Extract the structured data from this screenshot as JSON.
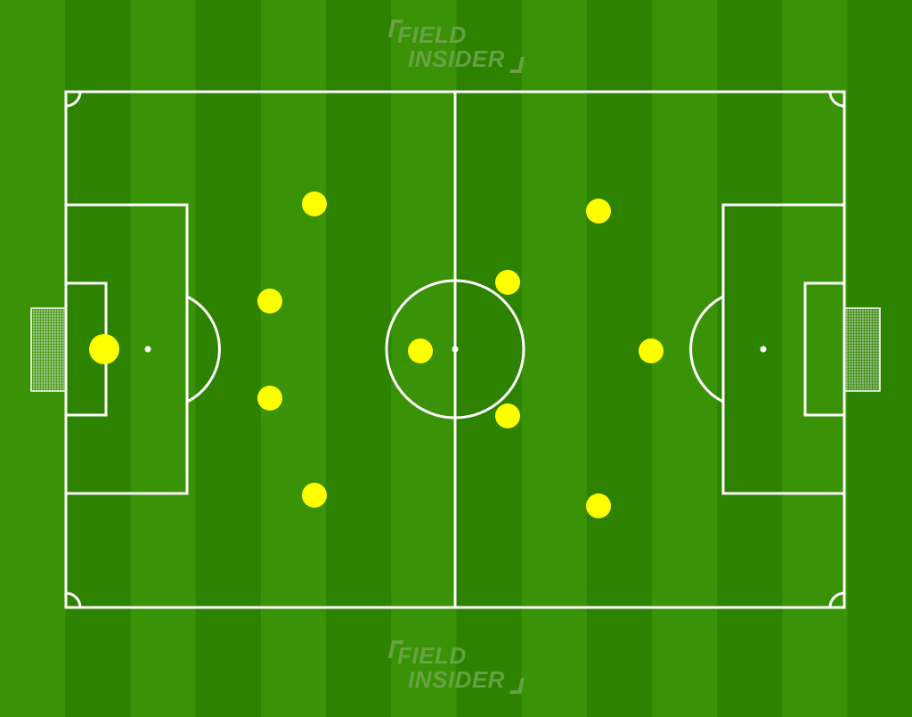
{
  "brand": {
    "line1": "FIELD",
    "line2": "INSIDER"
  },
  "colors": {
    "stripe_dark": "#2d8200",
    "stripe_light": "#3a9206",
    "lines": "#ffffff",
    "player": "#ffff00",
    "logo": "#6fa64f"
  },
  "formation": {
    "team_side": "left",
    "players": [
      {
        "role": "goalkeeper"
      },
      {
        "role": "left-back"
      },
      {
        "role": "left-center-back"
      },
      {
        "role": "right-center-back"
      },
      {
        "role": "right-back"
      },
      {
        "role": "central-midfielder"
      },
      {
        "role": "left-midfielder"
      },
      {
        "role": "right-midfielder"
      },
      {
        "role": "left-forward"
      },
      {
        "role": "striker"
      },
      {
        "role": "right-forward"
      }
    ]
  }
}
